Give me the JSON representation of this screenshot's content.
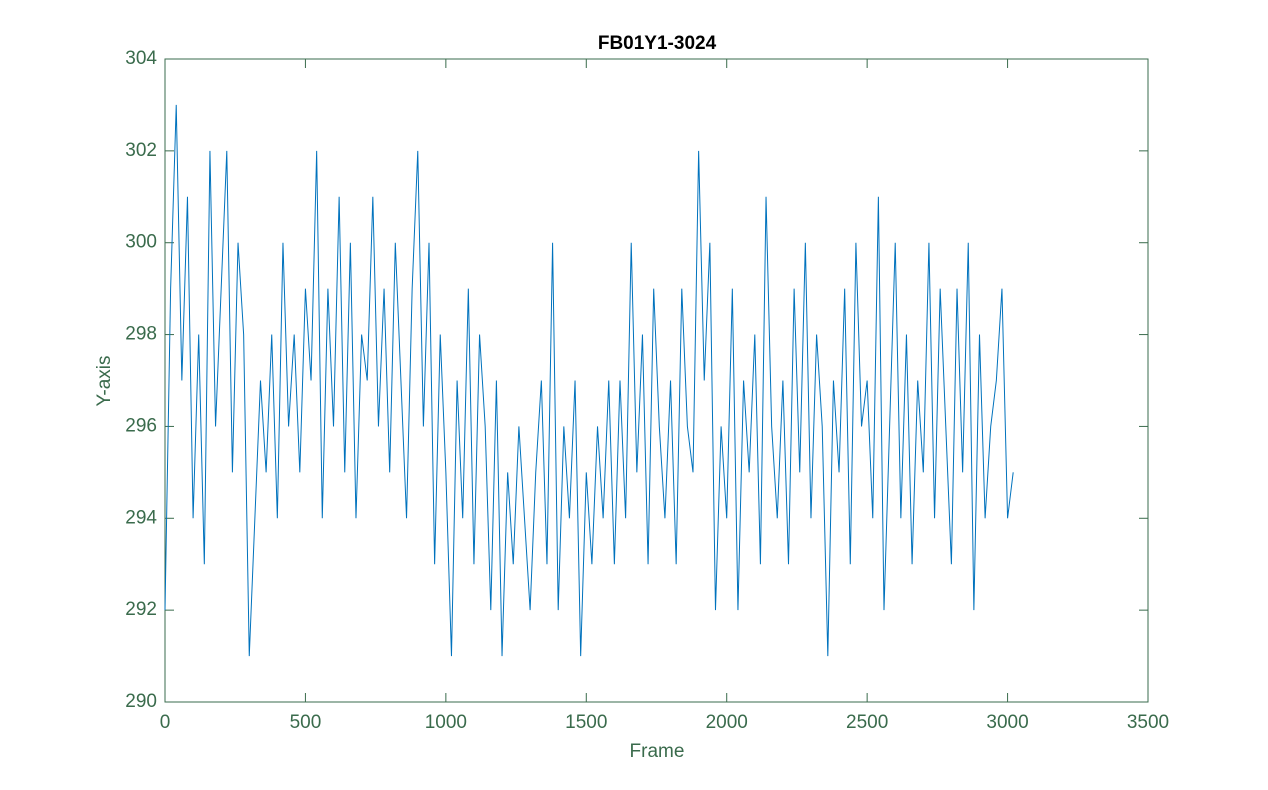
{
  "chart_data": {
    "type": "line",
    "title": "FB01Y1-3024",
    "x_label": "Frame",
    "y_label": "Y-axis",
    "x": [
      0,
      20,
      40,
      60,
      80,
      100,
      120,
      140,
      160,
      180,
      200,
      220,
      240,
      260,
      280,
      300,
      320,
      340,
      360,
      380,
      400,
      420,
      440,
      460,
      480,
      500,
      520,
      540,
      560,
      580,
      600,
      620,
      640,
      660,
      680,
      700,
      720,
      740,
      760,
      780,
      800,
      820,
      840,
      860,
      880,
      900,
      920,
      940,
      960,
      980,
      1000,
      1020,
      1040,
      1060,
      1080,
      1100,
      1120,
      1140,
      1160,
      1180,
      1200,
      1220,
      1240,
      1260,
      1280,
      1300,
      1320,
      1340,
      1360,
      1380,
      1400,
      1420,
      1440,
      1460,
      1480,
      1500,
      1520,
      1540,
      1560,
      1580,
      1600,
      1620,
      1640,
      1660,
      1680,
      1700,
      1720,
      1740,
      1760,
      1780,
      1800,
      1820,
      1840,
      1860,
      1880,
      1900,
      1920,
      1940,
      1960,
      1980,
      2000,
      2020,
      2040,
      2060,
      2080,
      2100,
      2120,
      2140,
      2160,
      2180,
      2200,
      2220,
      2240,
      2260,
      2280,
      2300,
      2320,
      2340,
      2360,
      2380,
      2400,
      2420,
      2440,
      2460,
      2480,
      2500,
      2520,
      2540,
      2560,
      2580,
      2600,
      2620,
      2640,
      2660,
      2680,
      2700,
      2720,
      2740,
      2760,
      2780,
      2800,
      2820,
      2840,
      2860,
      2880,
      2900,
      2920,
      2940,
      2960,
      2980,
      3000,
      3020
    ],
    "series": [
      {
        "color": "#0072bd",
        "values": [
          292,
          299,
          303,
          297,
          301,
          294,
          298,
          293,
          302,
          296,
          299,
          302,
          295,
          300,
          298,
          291,
          294,
          297,
          295,
          298,
          294,
          300,
          296,
          298,
          295,
          299,
          297,
          302,
          294,
          299,
          296,
          301,
          295,
          300,
          294,
          298,
          297,
          301,
          296,
          299,
          295,
          300,
          297,
          294,
          299,
          302,
          296,
          300,
          293,
          298,
          295,
          291,
          297,
          294,
          299,
          293,
          298,
          296,
          292,
          297,
          291,
          295,
          293,
          296,
          294,
          292,
          295,
          297,
          293,
          300,
          292,
          296,
          294,
          297,
          291,
          295,
          293,
          296,
          294,
          297,
          293,
          297,
          294,
          300,
          295,
          298,
          293,
          299,
          296,
          294,
          297,
          293,
          299,
          296,
          295,
          302,
          297,
          300,
          292,
          296,
          294,
          299,
          292,
          297,
          295,
          298,
          293,
          301,
          296,
          294,
          297,
          293,
          299,
          295,
          300,
          294,
          298,
          296,
          291,
          297,
          295,
          299,
          293,
          300,
          296,
          297,
          294,
          301,
          292,
          296,
          300,
          294,
          298,
          293,
          297,
          295,
          300,
          294,
          299,
          296,
          293,
          299,
          295,
          300,
          292,
          298,
          294,
          296,
          297,
          299,
          294,
          295
        ]
      }
    ],
    "xlim": [
      0,
      3500
    ],
    "xticks": [
      0,
      500,
      1000,
      1500,
      2000,
      2500,
      3000,
      3500
    ],
    "ylim": [
      290,
      304
    ],
    "yticks": [
      290,
      292,
      294,
      296,
      298,
      300,
      302,
      304
    ]
  }
}
